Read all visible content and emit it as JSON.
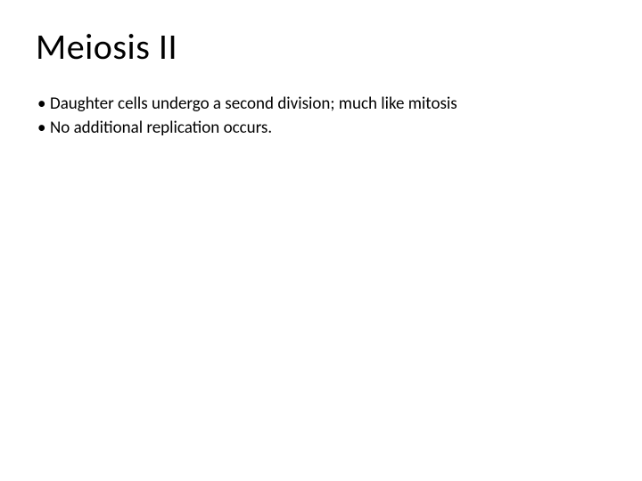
{
  "slide": {
    "title": "Meiosis II",
    "bullets": [
      "Daughter cells undergo a second division; much like mitosis",
      "No additional replication occurs."
    ],
    "title_fontsize": 40,
    "body_fontsize": 19,
    "text_color": "#000000",
    "background_color": "#ffffff",
    "font_family": "Calibri"
  }
}
